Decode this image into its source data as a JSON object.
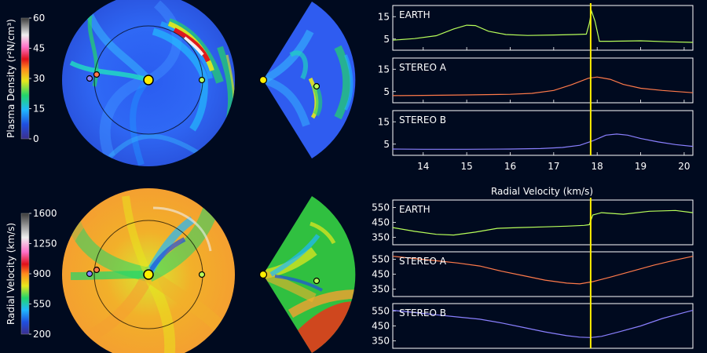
{
  "colorbars": [
    {
      "label": "Plasma Density (r²N/cm³)",
      "ticks": [
        "60",
        "45",
        "30",
        "15",
        "0"
      ],
      "tick_values": [
        60,
        45,
        30,
        15,
        0
      ],
      "range": [
        0,
        60
      ]
    },
    {
      "label": "Radial Velocity (km/s)",
      "ticks": [
        "1600",
        "1250",
        "900",
        "550",
        "200"
      ],
      "tick_values": [
        1600,
        1250,
        900,
        550,
        200
      ],
      "range": [
        200,
        1600
      ]
    }
  ],
  "colors": {
    "background": "#000a1f",
    "earth": "#b8ff5a",
    "stereo_a": "#ff7a4a",
    "stereo_b": "#8a80ff",
    "marker_line": "#ffee00",
    "sun": "#ffee00"
  },
  "chart_data": [
    {
      "type": "line",
      "ylim": [
        0,
        20
      ],
      "xlim": [
        13.3,
        20.2
      ],
      "yticks": [
        5,
        15
      ],
      "ytick_labels": [
        "5",
        "15"
      ],
      "x_ticks": [
        14,
        15,
        16,
        17,
        18,
        19,
        20
      ],
      "x_tick_labels": [
        "14",
        "15",
        "16",
        "17",
        "18",
        "19",
        "20"
      ],
      "marker_x": 17.85,
      "panels": [
        {
          "name": "EARTH",
          "color": "#b8ff5a",
          "x": [
            13.3,
            13.8,
            14.3,
            14.7,
            15.0,
            15.2,
            15.5,
            15.9,
            16.4,
            17.0,
            17.5,
            17.75,
            17.82,
            17.87,
            17.95,
            18.05,
            18.3,
            19.0,
            19.6,
            20.2
          ],
          "y": [
            4.5,
            5.2,
            6.5,
            9.5,
            11.2,
            11.0,
            8.5,
            7.0,
            6.6,
            6.8,
            7.0,
            7.2,
            12.0,
            17.5,
            13.0,
            4.0,
            4.0,
            4.2,
            3.8,
            3.5
          ]
        },
        {
          "name": "STEREO A",
          "color": "#ff7a4a",
          "x": [
            13.3,
            14.0,
            15.0,
            16.0,
            16.5,
            17.0,
            17.4,
            17.8,
            18.0,
            18.3,
            18.6,
            19.0,
            19.5,
            20.2
          ],
          "y": [
            3.2,
            3.3,
            3.5,
            3.8,
            4.2,
            5.5,
            8.0,
            11.0,
            11.5,
            10.5,
            8.2,
            6.5,
            5.5,
            4.5
          ]
        },
        {
          "name": "STEREO B",
          "color": "#8a80ff",
          "x": [
            13.3,
            14.0,
            15.0,
            16.0,
            16.7,
            17.2,
            17.6,
            17.9,
            18.2,
            18.45,
            18.7,
            19.0,
            19.4,
            19.8,
            20.2
          ],
          "y": [
            2.8,
            2.7,
            2.7,
            2.8,
            3.0,
            3.5,
            4.5,
            6.5,
            9.0,
            9.5,
            9.0,
            7.5,
            6.0,
            4.8,
            4.0
          ]
        }
      ]
    },
    {
      "type": "line",
      "title": "Radial Velocity (km/s)",
      "ylim": [
        300,
        600
      ],
      "xlim": [
        13.3,
        20.2
      ],
      "yticks": [
        350,
        450,
        550
      ],
      "ytick_labels": [
        "350",
        "450",
        "550"
      ],
      "marker_x": 17.85,
      "panels": [
        {
          "name": "EARTH",
          "color": "#b8ff5a",
          "x": [
            13.3,
            13.8,
            14.3,
            14.7,
            15.2,
            15.7,
            16.2,
            16.8,
            17.3,
            17.7,
            17.82,
            17.9,
            18.1,
            18.6,
            19.2,
            19.8,
            20.2
          ],
          "y": [
            415,
            390,
            370,
            365,
            385,
            410,
            415,
            420,
            425,
            430,
            435,
            500,
            515,
            505,
            525,
            530,
            515
          ]
        },
        {
          "name": "STEREO A",
          "color": "#ff7a4a",
          "x": [
            13.3,
            13.8,
            14.3,
            14.8,
            15.3,
            15.8,
            16.3,
            16.8,
            17.3,
            17.6,
            17.9,
            18.3,
            18.8,
            19.3,
            19.8,
            20.2
          ],
          "y": [
            570,
            555,
            540,
            525,
            505,
            470,
            440,
            410,
            390,
            385,
            400,
            430,
            470,
            510,
            545,
            570
          ]
        },
        {
          "name": "STEREO B",
          "color": "#8a80ff",
          "x": [
            13.3,
            13.8,
            14.3,
            14.8,
            15.3,
            15.8,
            16.3,
            16.8,
            17.3,
            17.6,
            17.85,
            18.1,
            18.5,
            19.0,
            19.5,
            20.0,
            20.2
          ],
          "y": [
            555,
            540,
            525,
            510,
            495,
            470,
            440,
            410,
            385,
            375,
            372,
            380,
            410,
            450,
            500,
            540,
            555
          ]
        }
      ]
    }
  ]
}
